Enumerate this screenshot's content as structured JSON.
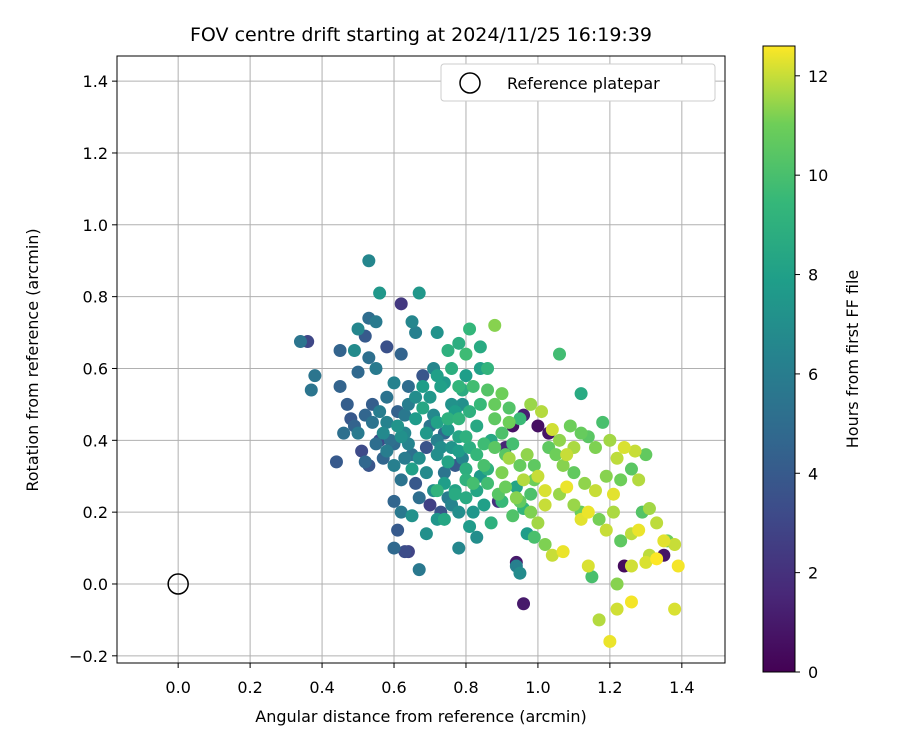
{
  "chart_data": {
    "type": "scatter",
    "title": "FOV centre drift starting at 2024/11/25 16:19:39",
    "xlabel": "Angular distance from reference (arcmin)",
    "ylabel": "Rotation from reference (arcmin)",
    "xlim": [
      -0.17,
      1.52
    ],
    "ylim": [
      -0.22,
      1.47
    ],
    "xticks": [
      0.0,
      0.2,
      0.4,
      0.6,
      0.8,
      1.0,
      1.2,
      1.4
    ],
    "yticks": [
      -0.2,
      0.0,
      0.2,
      0.4,
      0.6,
      0.8,
      1.0,
      1.2,
      1.4
    ],
    "xtick_labels": [
      "0.0",
      "0.2",
      "0.4",
      "0.6",
      "0.8",
      "1.0",
      "1.2",
      "1.4"
    ],
    "ytick_labels": [
      "−0.2",
      "0.0",
      "0.2",
      "0.4",
      "0.6",
      "0.8",
      "1.0",
      "1.2",
      "1.4"
    ],
    "grid": true,
    "legend": {
      "label": "Reference platepar",
      "placement": "top-right"
    },
    "reference_point": {
      "x": 0.0,
      "y": 0.0
    },
    "colorbar": {
      "label": "Hours from first FF file",
      "range": [
        0,
        12.6
      ],
      "ticks": [
        0,
        2,
        4,
        6,
        8,
        10,
        12
      ],
      "colormap": "viridis"
    },
    "points": [
      [
        0.53,
        0.9,
        6.5
      ],
      [
        0.56,
        0.81,
        7.5
      ],
      [
        0.67,
        0.81,
        7.5
      ],
      [
        0.62,
        0.78,
        2.3
      ],
      [
        0.65,
        0.73,
        6.5
      ],
      [
        0.53,
        0.74,
        5.0
      ],
      [
        0.5,
        0.71,
        6.5
      ],
      [
        0.34,
        0.675,
        5.5
      ],
      [
        0.36,
        0.675,
        3.0
      ],
      [
        0.38,
        0.58,
        5.5
      ],
      [
        0.37,
        0.54,
        5.5
      ],
      [
        0.45,
        0.65,
        4.5
      ],
      [
        0.49,
        0.65,
        6.8
      ],
      [
        0.52,
        0.69,
        4.0
      ],
      [
        0.55,
        0.73,
        5.8
      ],
      [
        0.58,
        0.66,
        3.5
      ],
      [
        0.62,
        0.64,
        4.5
      ],
      [
        0.66,
        0.7,
        6.2
      ],
      [
        0.45,
        0.55,
        4.5
      ],
      [
        0.47,
        0.5,
        4.2
      ],
      [
        0.5,
        0.59,
        4.8
      ],
      [
        0.53,
        0.63,
        5.2
      ],
      [
        0.55,
        0.6,
        5.8
      ],
      [
        0.6,
        0.56,
        6.3
      ],
      [
        0.64,
        0.55,
        5.0
      ],
      [
        0.68,
        0.58,
        3.8
      ],
      [
        0.71,
        0.6,
        6.5
      ],
      [
        0.46,
        0.42,
        5.2
      ],
      [
        0.49,
        0.44,
        4.5
      ],
      [
        0.51,
        0.37,
        3.2
      ],
      [
        0.53,
        0.33,
        3.8
      ],
      [
        0.55,
        0.39,
        5.1
      ],
      [
        0.58,
        0.45,
        6.3
      ],
      [
        0.61,
        0.48,
        4.4
      ],
      [
        0.63,
        0.42,
        6.6
      ],
      [
        0.65,
        0.36,
        5.3
      ],
      [
        0.44,
        0.34,
        4.0
      ],
      [
        0.52,
        0.34,
        4.7
      ],
      [
        0.57,
        0.35,
        4.6
      ],
      [
        0.6,
        0.33,
        6.1
      ],
      [
        0.62,
        0.29,
        5.4
      ],
      [
        0.66,
        0.28,
        3.9
      ],
      [
        0.69,
        0.31,
        6.8
      ],
      [
        0.71,
        0.26,
        7.0
      ],
      [
        0.74,
        0.31,
        5.5
      ],
      [
        0.6,
        0.23,
        4.6
      ],
      [
        0.62,
        0.2,
        5.7
      ],
      [
        0.61,
        0.15,
        4.0
      ],
      [
        0.65,
        0.19,
        7.2
      ],
      [
        0.67,
        0.24,
        5.1
      ],
      [
        0.7,
        0.22,
        2.7
      ],
      [
        0.73,
        0.2,
        3.6
      ],
      [
        0.75,
        0.24,
        6.0
      ],
      [
        0.77,
        0.26,
        8.2
      ],
      [
        0.6,
        0.1,
        4.8
      ],
      [
        0.63,
        0.09,
        3.3
      ],
      [
        0.64,
        0.09,
        2.9
      ],
      [
        0.67,
        0.04,
        5.7
      ],
      [
        0.69,
        0.14,
        7.1
      ],
      [
        0.72,
        0.18,
        7.4
      ],
      [
        0.78,
        0.1,
        6.6
      ],
      [
        0.81,
        0.16,
        7.7
      ],
      [
        0.83,
        0.13,
        7.0
      ],
      [
        0.72,
        0.7,
        7.2
      ],
      [
        0.75,
        0.65,
        9.0
      ],
      [
        0.78,
        0.67,
        8.8
      ],
      [
        0.81,
        0.71,
        9.4
      ],
      [
        0.84,
        0.66,
        8.6
      ],
      [
        0.86,
        0.6,
        9.2
      ],
      [
        0.88,
        0.72,
        11.3
      ],
      [
        0.84,
        0.6,
        8.0
      ],
      [
        0.8,
        0.64,
        9.7
      ],
      [
        0.7,
        0.52,
        7.5
      ],
      [
        0.73,
        0.55,
        8.0
      ],
      [
        0.76,
        0.5,
        7.2
      ],
      [
        0.79,
        0.54,
        8.7
      ],
      [
        0.81,
        0.48,
        9.0
      ],
      [
        0.84,
        0.5,
        9.5
      ],
      [
        0.86,
        0.54,
        10.3
      ],
      [
        0.88,
        0.5,
        10.8
      ],
      [
        0.9,
        0.53,
        11.0
      ],
      [
        0.72,
        0.45,
        8.1
      ],
      [
        0.75,
        0.43,
        7.6
      ],
      [
        0.78,
        0.46,
        9.2
      ],
      [
        0.8,
        0.41,
        9.0
      ],
      [
        0.83,
        0.44,
        8.5
      ],
      [
        0.85,
        0.39,
        9.7
      ],
      [
        0.88,
        0.46,
        10.6
      ],
      [
        0.9,
        0.42,
        10.1
      ],
      [
        0.92,
        0.45,
        11.0
      ],
      [
        0.72,
        0.36,
        7.0
      ],
      [
        0.75,
        0.34,
        8.2
      ],
      [
        0.78,
        0.37,
        7.8
      ],
      [
        0.8,
        0.32,
        8.9
      ],
      [
        0.83,
        0.36,
        9.4
      ],
      [
        0.85,
        0.33,
        10.0
      ],
      [
        0.88,
        0.38,
        10.5
      ],
      [
        0.9,
        0.31,
        11.2
      ],
      [
        0.92,
        0.35,
        11.6
      ],
      [
        0.74,
        0.28,
        7.9
      ],
      [
        0.77,
        0.25,
        8.6
      ],
      [
        0.8,
        0.29,
        9.1
      ],
      [
        0.83,
        0.26,
        8.3
      ],
      [
        0.86,
        0.28,
        9.8
      ],
      [
        0.89,
        0.25,
        10.4
      ],
      [
        0.91,
        0.27,
        10.9
      ],
      [
        0.94,
        0.24,
        11.3
      ],
      [
        0.96,
        0.29,
        11.8
      ],
      [
        0.82,
        0.2,
        7.4
      ],
      [
        0.85,
        0.22,
        8.0
      ],
      [
        0.87,
        0.17,
        9.0
      ],
      [
        0.9,
        0.23,
        9.5
      ],
      [
        0.93,
        0.19,
        10.2
      ],
      [
        0.95,
        0.23,
        10.7
      ],
      [
        0.98,
        0.2,
        11.2
      ],
      [
        1.0,
        0.17,
        11.6
      ],
      [
        1.02,
        0.22,
        12.0
      ],
      [
        0.94,
        0.05,
        6.2
      ],
      [
        0.95,
        0.03,
        6.8
      ],
      [
        0.96,
        -0.055,
        1.0
      ],
      [
        0.94,
        0.06,
        1.0
      ],
      [
        0.97,
        0.14,
        7.8
      ],
      [
        0.99,
        0.13,
        10.0
      ],
      [
        1.02,
        0.11,
        11.2
      ],
      [
        1.04,
        0.08,
        12.0
      ],
      [
        1.07,
        0.09,
        12.4
      ],
      [
        0.89,
        0.23,
        2.0
      ],
      [
        0.91,
        0.38,
        1.5
      ],
      [
        0.93,
        0.44,
        0.7
      ],
      [
        0.96,
        0.47,
        1.3
      ],
      [
        1.0,
        0.44,
        0.6
      ],
      [
        1.03,
        0.42,
        0.8
      ],
      [
        1.03,
        0.38,
        10.6
      ],
      [
        1.05,
        0.36,
        11.0
      ],
      [
        1.07,
        0.33,
        11.3
      ],
      [
        0.92,
        0.49,
        10.3
      ],
      [
        0.95,
        0.46,
        9.6
      ],
      [
        0.98,
        0.5,
        11.5
      ],
      [
        1.01,
        0.48,
        11.8
      ],
      [
        1.04,
        0.43,
        12.1
      ],
      [
        1.06,
        0.4,
        11.4
      ],
      [
        1.08,
        0.36,
        12.0
      ],
      [
        1.1,
        0.38,
        11.7
      ],
      [
        1.12,
        0.42,
        10.8
      ],
      [
        1.06,
        0.64,
        9.8
      ],
      [
        1.09,
        0.44,
        11.0
      ],
      [
        1.12,
        0.53,
        8.6
      ],
      [
        1.14,
        0.41,
        10.5
      ],
      [
        1.16,
        0.38,
        11.2
      ],
      [
        1.18,
        0.45,
        10.0
      ],
      [
        1.2,
        0.4,
        11.6
      ],
      [
        1.22,
        0.35,
        11.9
      ],
      [
        1.24,
        0.38,
        12.2
      ],
      [
        1.1,
        0.31,
        10.7
      ],
      [
        1.13,
        0.28,
        11.4
      ],
      [
        1.16,
        0.26,
        12.0
      ],
      [
        1.19,
        0.3,
        11.3
      ],
      [
        1.21,
        0.25,
        12.3
      ],
      [
        1.23,
        0.29,
        11.0
      ],
      [
        1.26,
        0.32,
        10.5
      ],
      [
        1.28,
        0.29,
        11.8
      ],
      [
        1.3,
        0.36,
        10.7
      ],
      [
        1.1,
        0.22,
        11.5
      ],
      [
        1.12,
        0.2,
        10.9
      ],
      [
        1.14,
        0.2,
        12.4
      ],
      [
        1.17,
        0.18,
        11.1
      ],
      [
        1.19,
        0.15,
        12.0
      ],
      [
        1.21,
        0.2,
        11.7
      ],
      [
        1.23,
        0.12,
        10.6
      ],
      [
        1.26,
        0.14,
        11.9
      ],
      [
        1.28,
        0.15,
        12.4
      ],
      [
        1.12,
        0.18,
        12.3
      ],
      [
        1.14,
        0.05,
        12.2
      ],
      [
        1.15,
        0.02,
        10.0
      ],
      [
        1.17,
        -0.1,
        11.8
      ],
      [
        1.2,
        -0.16,
        12.4
      ],
      [
        1.22,
        -0.07,
        12.1
      ],
      [
        1.22,
        0.0,
        11.3
      ],
      [
        1.24,
        0.05,
        0.4
      ],
      [
        1.26,
        0.05,
        12.1
      ],
      [
        1.26,
        -0.05,
        12.5
      ],
      [
        1.3,
        0.06,
        12.2
      ],
      [
        1.31,
        0.08,
        11.9
      ],
      [
        1.33,
        0.07,
        12.6
      ],
      [
        1.35,
        0.08,
        0.8
      ],
      [
        1.36,
        0.12,
        11.0
      ],
      [
        1.38,
        0.11,
        12.0
      ],
      [
        1.38,
        -0.07,
        12.2
      ],
      [
        1.39,
        0.05,
        12.5
      ],
      [
        1.27,
        0.37,
        12.0
      ],
      [
        1.29,
        0.2,
        10.3
      ],
      [
        1.31,
        0.21,
        11.6
      ],
      [
        1.33,
        0.17,
        11.9
      ],
      [
        1.35,
        0.12,
        12.3
      ],
      [
        1.08,
        0.27,
        12.4
      ],
      [
        1.06,
        0.25,
        11.5
      ],
      [
        1.02,
        0.26,
        12.2
      ],
      [
        0.99,
        0.29,
        11.0
      ],
      [
        0.7,
        0.44,
        5.6
      ],
      [
        0.72,
        0.4,
        6.2
      ],
      [
        0.74,
        0.42,
        4.8
      ],
      [
        0.76,
        0.38,
        7.3
      ],
      [
        0.78,
        0.41,
        8.3
      ],
      [
        0.71,
        0.47,
        6.7
      ],
      [
        0.68,
        0.49,
        8.4
      ],
      [
        0.66,
        0.46,
        7.7
      ],
      [
        0.64,
        0.5,
        6.0
      ],
      [
        0.69,
        0.38,
        3.6
      ],
      [
        0.67,
        0.35,
        7.0
      ],
      [
        0.65,
        0.32,
        8.0
      ],
      [
        0.63,
        0.35,
        5.9
      ],
      [
        0.69,
        0.42,
        7.6
      ],
      [
        0.73,
        0.38,
        6.9
      ],
      [
        0.77,
        0.33,
        4.1
      ],
      [
        0.79,
        0.35,
        6.4
      ],
      [
        0.81,
        0.38,
        8.8
      ],
      [
        0.58,
        0.52,
        5.4
      ],
      [
        0.56,
        0.48,
        6.0
      ],
      [
        0.54,
        0.5,
        4.2
      ],
      [
        0.57,
        0.42,
        6.7
      ],
      [
        0.59,
        0.4,
        5.2
      ],
      [
        0.61,
        0.44,
        7.3
      ],
      [
        0.63,
        0.47,
        5.7
      ],
      [
        0.66,
        0.52,
        6.9
      ],
      [
        0.68,
        0.55,
        7.8
      ],
      [
        0.87,
        0.4,
        8.5
      ],
      [
        0.86,
        0.32,
        9.0
      ],
      [
        0.84,
        0.3,
        7.6
      ],
      [
        0.82,
        0.28,
        9.9
      ],
      [
        0.8,
        0.24,
        8.6
      ],
      [
        0.78,
        0.2,
        7.0
      ],
      [
        0.76,
        0.22,
        6.4
      ],
      [
        0.74,
        0.18,
        8.4
      ],
      [
        0.72,
        0.26,
        9.2
      ],
      [
        0.93,
        0.39,
        9.9
      ],
      [
        0.91,
        0.36,
        10.4
      ],
      [
        0.95,
        0.33,
        10.8
      ],
      [
        0.97,
        0.36,
        11.4
      ],
      [
        0.99,
        0.33,
        10.6
      ],
      [
        1.0,
        0.3,
        12.0
      ],
      [
        0.98,
        0.25,
        10.1
      ],
      [
        0.96,
        0.21,
        9.3
      ],
      [
        0.94,
        0.27,
        8.2
      ],
      [
        0.48,
        0.46,
        3.9
      ],
      [
        0.5,
        0.42,
        5.8
      ],
      [
        0.52,
        0.47,
        4.6
      ],
      [
        0.54,
        0.45,
        5.4
      ],
      [
        0.56,
        0.4,
        3.2
      ],
      [
        0.58,
        0.37,
        6.0
      ],
      [
        0.6,
        0.39,
        4.9
      ],
      [
        0.62,
        0.41,
        7.1
      ],
      [
        0.64,
        0.39,
        6.4
      ],
      [
        0.72,
        0.58,
        8.0
      ],
      [
        0.74,
        0.56,
        7.6
      ],
      [
        0.76,
        0.6,
        8.9
      ],
      [
        0.78,
        0.55,
        9.3
      ],
      [
        0.8,
        0.58,
        7.9
      ],
      [
        0.82,
        0.55,
        9.8
      ],
      [
        0.79,
        0.5,
        7.1
      ],
      [
        0.77,
        0.48,
        7.9
      ],
      [
        0.75,
        0.46,
        9.0
      ]
    ]
  }
}
